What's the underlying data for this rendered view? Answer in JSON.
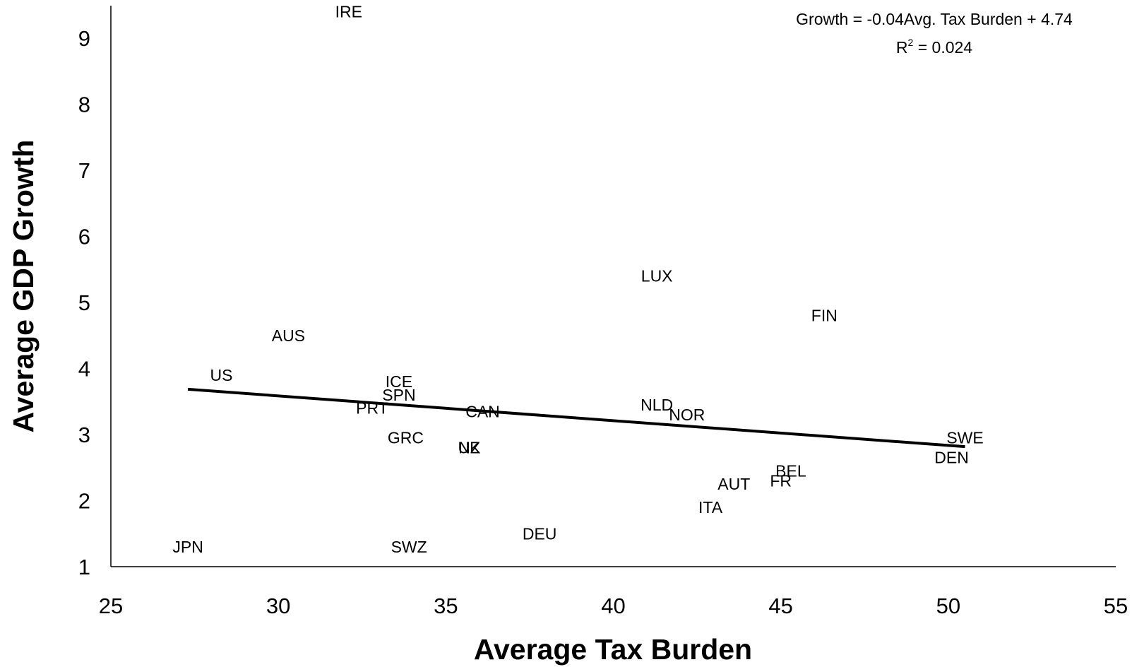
{
  "chart_data": {
    "type": "scatter",
    "xlabel": "Average Tax Burden",
    "ylabel": "Average GDP Growth",
    "xlim": [
      25,
      55
    ],
    "ylim": [
      1,
      9.5
    ],
    "x_ticks": [
      "25",
      "30",
      "35",
      "40",
      "45",
      "50",
      "55"
    ],
    "y_ticks": [
      "1",
      "2",
      "3",
      "4",
      "5",
      "6",
      "7",
      "8",
      "9"
    ],
    "grid": false,
    "points": [
      {
        "label": "IRE",
        "x": 32.1,
        "y": 9.4
      },
      {
        "label": "LUX",
        "x": 41.3,
        "y": 5.4
      },
      {
        "label": "FIN",
        "x": 46.3,
        "y": 4.8
      },
      {
        "label": "AUS",
        "x": 30.3,
        "y": 4.5
      },
      {
        "label": "US",
        "x": 28.3,
        "y": 3.9
      },
      {
        "label": "ICE",
        "x": 33.6,
        "y": 3.8
      },
      {
        "label": "SPN",
        "x": 33.6,
        "y": 3.6
      },
      {
        "label": "PRT",
        "x": 32.8,
        "y": 3.4
      },
      {
        "label": "CAN",
        "x": 36.1,
        "y": 3.35
      },
      {
        "label": "NLD",
        "x": 41.3,
        "y": 3.45
      },
      {
        "label": "NOR",
        "x": 42.2,
        "y": 3.3
      },
      {
        "label": "GRC",
        "x": 33.8,
        "y": 2.95
      },
      {
        "label": "UK",
        "x": 35.7,
        "y": 2.8
      },
      {
        "label": "NZ",
        "x": 35.7,
        "y": 2.8
      },
      {
        "label": "SWE",
        "x": 50.5,
        "y": 2.95
      },
      {
        "label": "DEN",
        "x": 50.1,
        "y": 2.65
      },
      {
        "label": "BEL",
        "x": 45.3,
        "y": 2.45
      },
      {
        "label": "FR",
        "x": 45.0,
        "y": 2.3
      },
      {
        "label": "AUT",
        "x": 43.6,
        "y": 2.25
      },
      {
        "label": "ITA",
        "x": 42.9,
        "y": 1.9
      },
      {
        "label": "DEU",
        "x": 37.8,
        "y": 1.5
      },
      {
        "label": "JPN",
        "x": 27.3,
        "y": 1.3
      },
      {
        "label": "SWZ",
        "x": 33.9,
        "y": 1.3
      }
    ],
    "trendline": {
      "x_start": 27.3,
      "x_end": 50.5,
      "equation": "Growth = -0.04Avg. Tax Burden + 4.74",
      "r2_prefix": "R",
      "r2_superscript": "2",
      "r2_value": " = 0.024"
    }
  }
}
